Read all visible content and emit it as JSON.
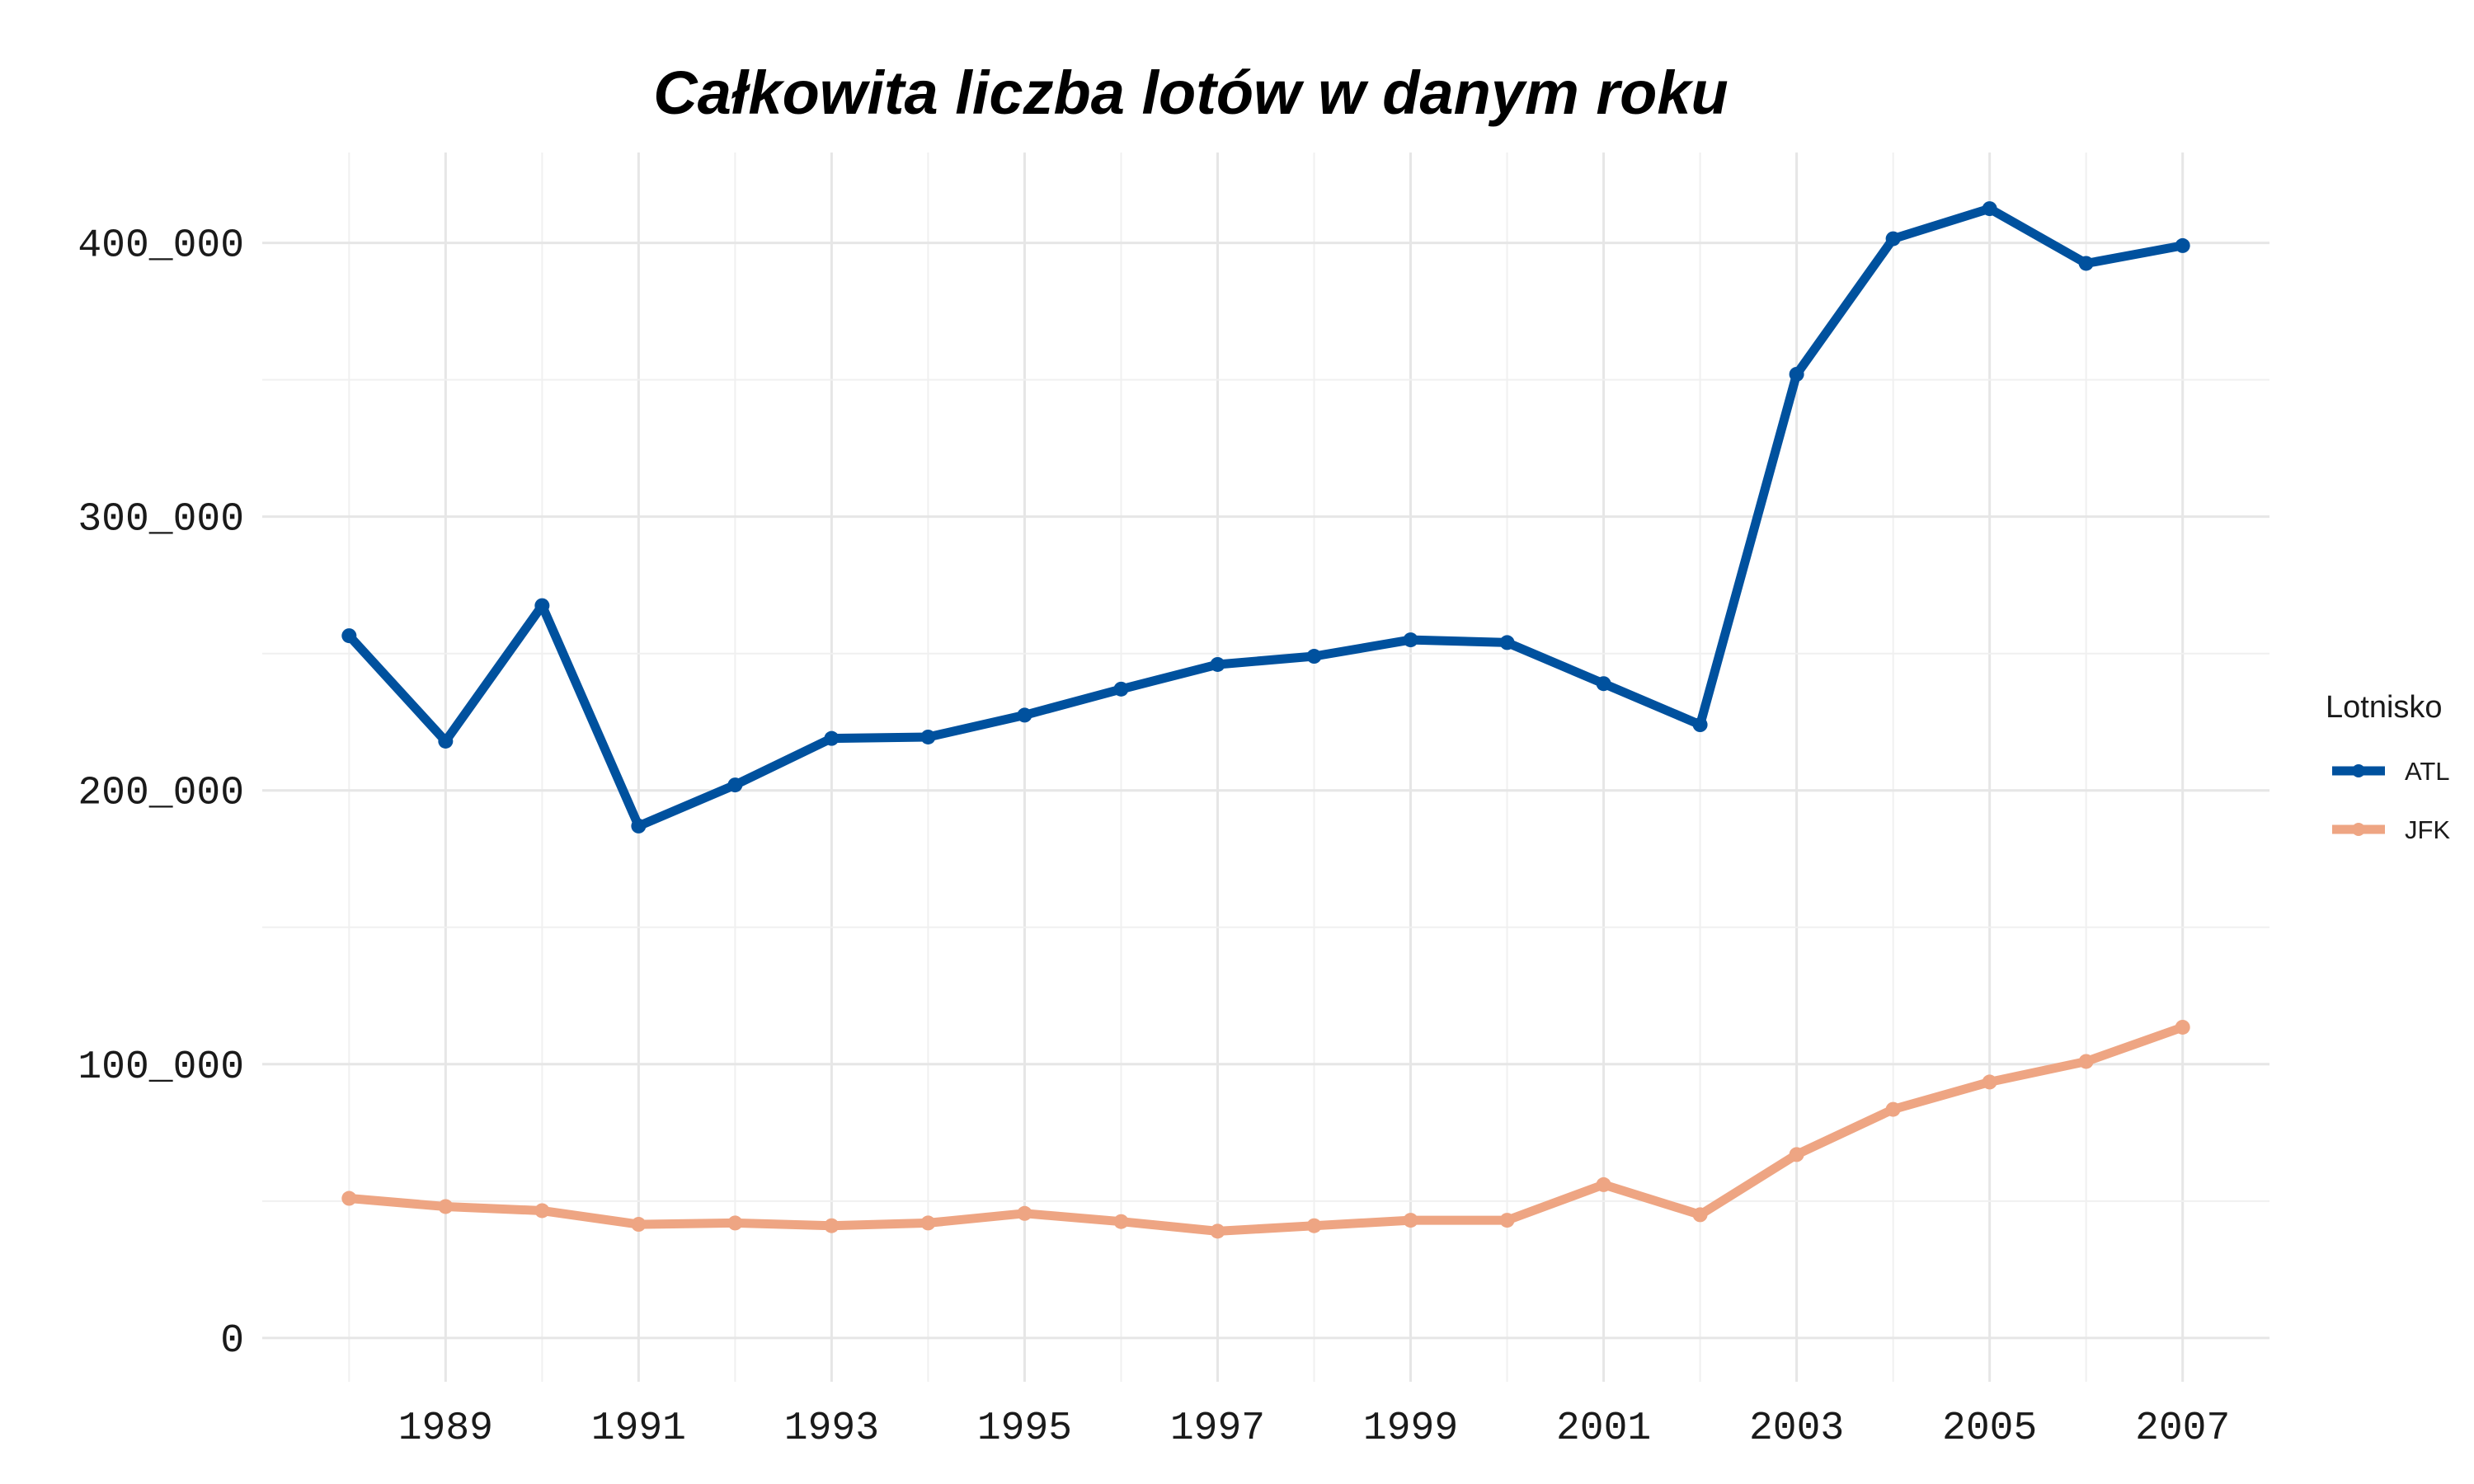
{
  "chart_data": {
    "type": "line",
    "title": "Całkowita liczba lotów w danym roku",
    "xlabel": "",
    "ylabel": "",
    "x": [
      1988,
      1989,
      1990,
      1991,
      1992,
      1993,
      1994,
      1995,
      1996,
      1997,
      1998,
      1999,
      2000,
      2001,
      2002,
      2003,
      2004,
      2005,
      2006,
      2007
    ],
    "x_ticks": [
      1989,
      1991,
      1993,
      1995,
      1997,
      1999,
      2001,
      2003,
      2005,
      2007
    ],
    "x_tick_labels": [
      "1989",
      "1991",
      "1993",
      "1995",
      "1997",
      "1999",
      "2001",
      "2003",
      "2005",
      "2007"
    ],
    "y_ticks": [
      0,
      100000,
      200000,
      300000,
      400000
    ],
    "y_tick_labels": [
      "0",
      "100_000",
      "200_000",
      "300_000",
      "400_000"
    ],
    "xlim": [
      1987.1,
      2007.9
    ],
    "ylim": [
      -16000,
      433000
    ],
    "grid": true,
    "legend": {
      "title": "Lotnisko",
      "position": "right"
    },
    "series": [
      {
        "name": "ATL",
        "color": "#00519e",
        "values": [
          256500,
          218000,
          267500,
          187000,
          202000,
          219000,
          219500,
          227500,
          237000,
          246000,
          249000,
          255000,
          254000,
          239000,
          224000,
          352000,
          401500,
          412500,
          392500,
          399000
        ]
      },
      {
        "name": "JFK",
        "color": "#eea583",
        "values": [
          51000,
          48000,
          46500,
          41500,
          42000,
          41000,
          42000,
          45500,
          42500,
          39000,
          41000,
          43000,
          43000,
          56000,
          45000,
          67000,
          83500,
          93500,
          101000,
          113500
        ]
      }
    ]
  }
}
